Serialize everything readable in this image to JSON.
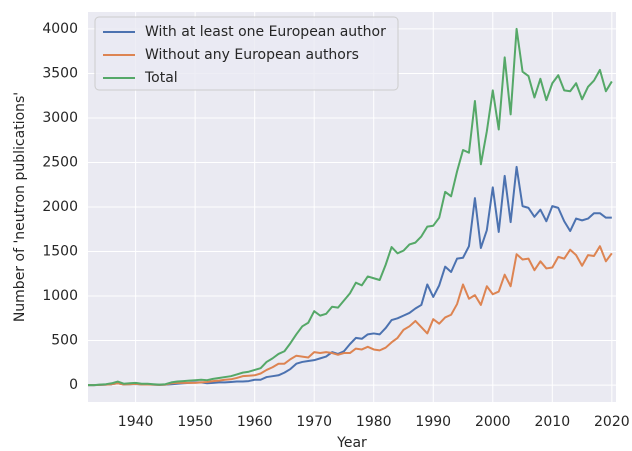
{
  "chart_data": {
    "type": "line",
    "x_label": "Year",
    "y_label": "Number of 'neutron publications'",
    "x": [
      1932,
      1933,
      1934,
      1935,
      1936,
      1937,
      1938,
      1939,
      1940,
      1941,
      1942,
      1943,
      1944,
      1945,
      1946,
      1947,
      1948,
      1949,
      1950,
      1951,
      1952,
      1953,
      1954,
      1955,
      1956,
      1957,
      1958,
      1959,
      1960,
      1961,
      1962,
      1963,
      1964,
      1965,
      1966,
      1967,
      1968,
      1969,
      1970,
      1971,
      1972,
      1973,
      1974,
      1975,
      1976,
      1977,
      1978,
      1979,
      1980,
      1981,
      1982,
      1983,
      1984,
      1985,
      1986,
      1987,
      1988,
      1989,
      1990,
      1991,
      1992,
      1993,
      1994,
      1995,
      1996,
      1997,
      1998,
      1999,
      2000,
      2001,
      2002,
      2003,
      2004,
      2005,
      2006,
      2007,
      2008,
      2009,
      2010,
      2011,
      2012,
      2013,
      2014,
      2015,
      2016,
      2017,
      2018,
      2019,
      2020
    ],
    "series": [
      {
        "name": "With at least one European author",
        "color": "#4c72b0",
        "values": [
          0,
          0,
          3,
          5,
          10,
          20,
          8,
          10,
          12,
          8,
          8,
          5,
          3,
          5,
          10,
          15,
          20,
          25,
          30,
          30,
          20,
          25,
          30,
          30,
          35,
          40,
          40,
          45,
          60,
          60,
          90,
          100,
          110,
          140,
          180,
          240,
          260,
          270,
          280,
          300,
          320,
          370,
          350,
          380,
          460,
          530,
          520,
          570,
          580,
          570,
          640,
          730,
          750,
          780,
          810,
          860,
          900,
          1130,
          990,
          1120,
          1330,
          1270,
          1420,
          1430,
          1560,
          2100,
          1540,
          1740,
          2220,
          1720,
          2350,
          1830,
          2450,
          2010,
          1990,
          1890,
          1970,
          1840,
          2010,
          1990,
          1840,
          1730,
          1870,
          1850,
          1870,
          1930,
          1930,
          1880,
          1880
        ]
      },
      {
        "name": "Without any European authors",
        "color": "#dd8452",
        "values": [
          0,
          0,
          2,
          5,
          10,
          20,
          7,
          10,
          13,
          7,
          7,
          5,
          2,
          5,
          20,
          25,
          25,
          25,
          25,
          30,
          35,
          45,
          50,
          60,
          65,
          80,
          100,
          105,
          110,
          130,
          170,
          200,
          240,
          240,
          290,
          330,
          320,
          310,
          370,
          360,
          370,
          360,
          340,
          360,
          360,
          410,
          400,
          430,
          400,
          390,
          420,
          480,
          530,
          620,
          660,
          720,
          650,
          580,
          740,
          690,
          760,
          790,
          910,
          1130,
          970,
          1010,
          900,
          1110,
          1020,
          1050,
          1240,
          1110,
          1470,
          1410,
          1420,
          1290,
          1390,
          1310,
          1320,
          1440,
          1420,
          1520,
          1460,
          1340,
          1460,
          1450,
          1560,
          1390,
          1480
        ]
      },
      {
        "name": "Total",
        "color": "#55a868",
        "values": [
          0,
          0,
          5,
          10,
          20,
          40,
          15,
          20,
          25,
          15,
          15,
          10,
          5,
          10,
          30,
          40,
          45,
          50,
          55,
          60,
          55,
          70,
          80,
          90,
          100,
          120,
          140,
          150,
          170,
          190,
          260,
          300,
          350,
          380,
          470,
          570,
          660,
          700,
          830,
          780,
          800,
          880,
          870,
          950,
          1030,
          1150,
          1120,
          1220,
          1200,
          1180,
          1350,
          1550,
          1480,
          1510,
          1580,
          1600,
          1670,
          1780,
          1790,
          1880,
          2170,
          2120,
          2400,
          2640,
          2610,
          3190,
          2480,
          2850,
          3310,
          2870,
          3680,
          3040,
          4000,
          3520,
          3470,
          3230,
          3440,
          3200,
          3390,
          3480,
          3310,
          3300,
          3390,
          3210,
          3350,
          3420,
          3540,
          3300,
          3410
        ]
      }
    ],
    "xlim": [
      1932,
      2020.7
    ],
    "ylim": [
      -190,
      4190
    ],
    "xticks": [
      1940,
      1950,
      1960,
      1970,
      1980,
      1990,
      2000,
      2010,
      2020
    ],
    "yticks": [
      0,
      500,
      1000,
      1500,
      2000,
      2500,
      3000,
      3500,
      4000
    ],
    "grid": true,
    "legend": "upper left"
  }
}
